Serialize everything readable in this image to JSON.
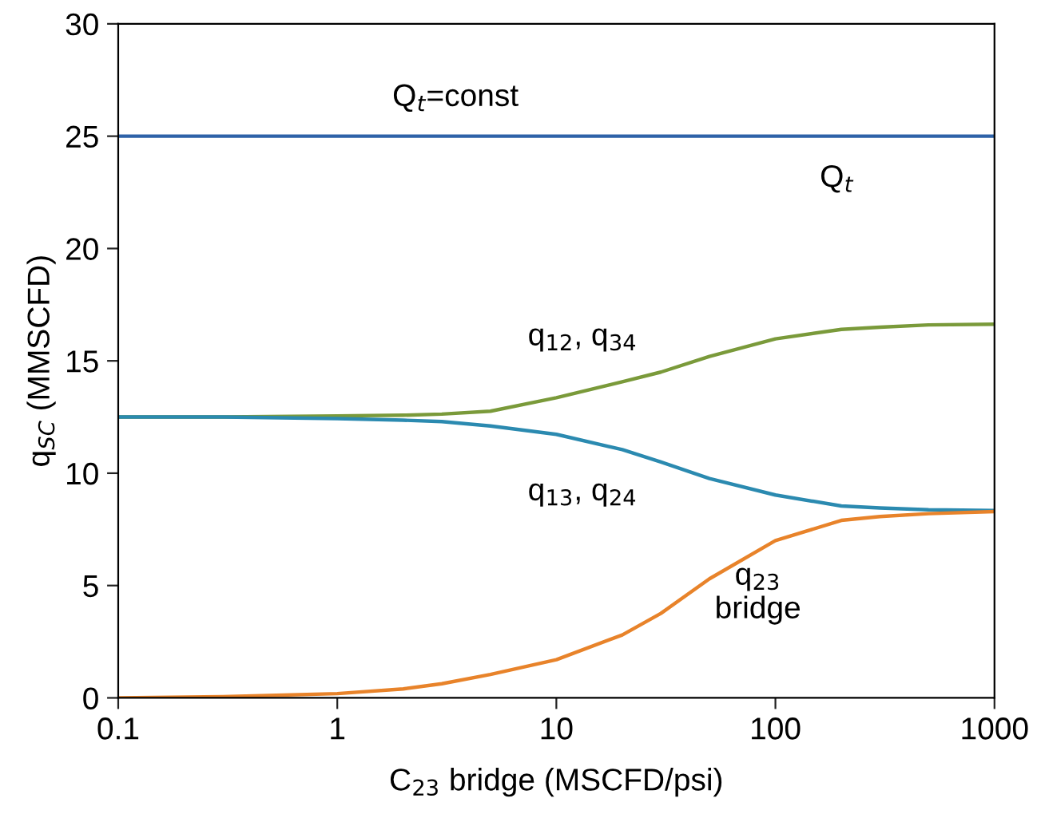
{
  "chart_data": {
    "type": "line",
    "xlabel": "C$_{23}$ bridge (MSCFD/psi)",
    "ylabel": "q$_{SC}$ (MMSCFD)",
    "log": "x",
    "x": [
      0.1,
      0.3,
      1,
      2,
      3,
      5,
      10,
      20,
      30,
      50,
      100,
      200,
      300,
      500,
      1000
    ],
    "series": [
      {
        "name": "Q$_{t}$",
        "color": "#2e62a8",
        "values": [
          25,
          25,
          25,
          25,
          25,
          25,
          25,
          25,
          25,
          25,
          25,
          25,
          25,
          25,
          25
        ]
      },
      {
        "name": "q$_{12}$, q$_{34}$",
        "color": "#7a9a3a",
        "values": [
          12.5,
          12.5,
          12.55,
          12.58,
          12.63,
          12.76,
          13.36,
          14.07,
          14.5,
          15.2,
          15.98,
          16.4,
          16.5,
          16.6,
          16.63
        ]
      },
      {
        "name": "q$_{13}$, q$_{24}$",
        "color": "#2b8ab0",
        "values": [
          12.5,
          12.5,
          12.43,
          12.36,
          12.3,
          12.1,
          11.73,
          11.05,
          10.5,
          9.76,
          9.03,
          8.54,
          8.45,
          8.37,
          8.34
        ]
      },
      {
        "name": "q$_{23}$\nbridge",
        "color": "#e8832a",
        "values": [
          0,
          0.05,
          0.19,
          0.4,
          0.63,
          1.04,
          1.7,
          2.8,
          3.76,
          5.3,
          7.0,
          7.9,
          8.07,
          8.2,
          8.29
        ]
      }
    ],
    "xlim": [
      0.1,
      1000
    ],
    "xticks": [
      0.1,
      1,
      10,
      100,
      1000
    ],
    "ylim": [
      0,
      30
    ],
    "yticks": [
      0,
      5,
      10,
      15,
      20,
      25,
      30
    ],
    "grid": false,
    "legend": false,
    "marker": "none",
    "line_style": "solid",
    "annotations": [
      "Q$_{t}$=const"
    ]
  }
}
